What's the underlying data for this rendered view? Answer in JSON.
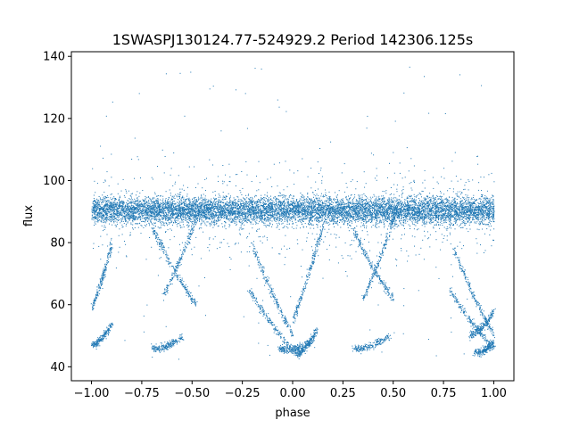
{
  "chart_data": {
    "type": "scatter",
    "title": "1SWASPJ130124.77-524929.2 Period 142306.125s",
    "xlabel": "phase",
    "ylabel": "flux",
    "xlim": [
      -1.1,
      1.1
    ],
    "ylim": [
      35.5,
      141.5
    ],
    "xticks": [
      -1.0,
      -0.75,
      -0.5,
      -0.25,
      0.0,
      0.25,
      0.5,
      0.75,
      1.0
    ],
    "xtick_labels": [
      "−1.00",
      "−0.75",
      "−0.50",
      "−0.25",
      "0.00",
      "0.25",
      "0.50",
      "0.75",
      "1.00"
    ],
    "yticks": [
      40,
      60,
      80,
      100,
      120,
      140
    ],
    "ytick_labels": [
      "40",
      "60",
      "80",
      "100",
      "120",
      "140"
    ],
    "grid": false,
    "marker_color": "#1f77b4",
    "series": [
      {
        "description_band": "dense horizontal band",
        "x_range": [
          -1.0,
          1.0
        ],
        "y_center": 90.5,
        "y_halfwidth": 3.5
      }
    ],
    "tracks": [
      {
        "x": [
          -1.0,
          -0.9
        ],
        "y": [
          59,
          80
        ]
      },
      {
        "x": [
          -1.0,
          -0.9
        ],
        "y": [
          47,
          54
        ]
      },
      {
        "x": [
          -0.7,
          -0.55
        ],
        "y": [
          46,
          50
        ]
      },
      {
        "x": [
          -0.7,
          -0.48
        ],
        "y": [
          85,
          60
        ]
      },
      {
        "x": [
          -0.65,
          -0.45
        ],
        "y": [
          62,
          93
        ]
      },
      {
        "x": [
          -0.2,
          0.0
        ],
        "y": [
          79,
          50
        ]
      },
      {
        "x": [
          -0.22,
          0.02
        ],
        "y": [
          65,
          44
        ]
      },
      {
        "x": [
          -0.07,
          0.08
        ],
        "y": [
          46,
          48
        ]
      },
      {
        "x": [
          0.0,
          0.15
        ],
        "y": [
          55,
          86
        ]
      },
      {
        "x": [
          0.02,
          0.12
        ],
        "y": [
          44,
          52
        ]
      },
      {
        "x": [
          0.3,
          0.48
        ],
        "y": [
          46,
          50
        ]
      },
      {
        "x": [
          0.35,
          0.52
        ],
        "y": [
          62,
          92
        ]
      },
      {
        "x": [
          0.3,
          0.5
        ],
        "y": [
          84,
          62
        ]
      },
      {
        "x": [
          0.8,
          1.0
        ],
        "y": [
          78,
          50
        ]
      },
      {
        "x": [
          0.78,
          1.0
        ],
        "y": [
          65,
          46
        ]
      },
      {
        "x": [
          0.9,
          1.0
        ],
        "y": [
          45,
          48
        ]
      },
      {
        "x": [
          0.88,
          1.0
        ],
        "y": [
          50,
          58
        ]
      }
    ]
  }
}
